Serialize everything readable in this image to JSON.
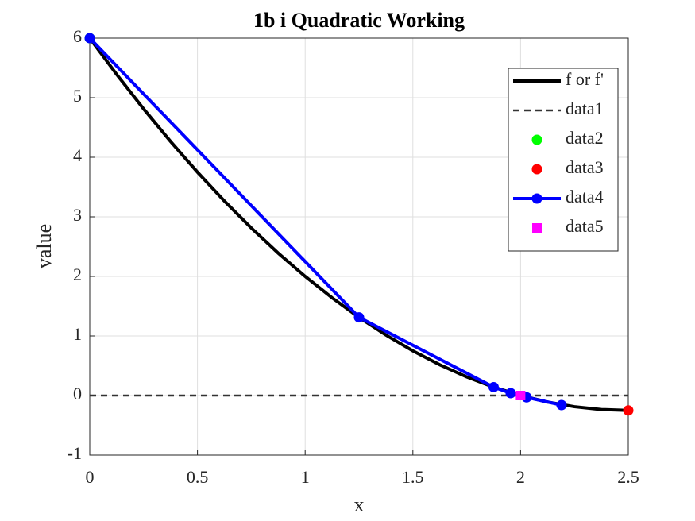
{
  "chart_data": {
    "type": "line",
    "title": "1b i Quadratic Working",
    "x_label": "x",
    "y_label": "value",
    "xlim": [
      0,
      2.5
    ],
    "xticks": [
      0,
      0.5,
      1,
      1.5,
      2,
      2.5
    ],
    "ylim": [
      -1,
      6
    ],
    "yticks": [
      -1,
      0,
      1,
      2,
      3,
      4,
      5,
      6
    ],
    "grid": true,
    "legend": "northeast",
    "series": [
      {
        "name": "f or f'",
        "color": "#000000",
        "line": "solid",
        "marker": "none",
        "x": [
          0,
          0.125,
          0.25,
          0.375,
          0.5,
          0.625,
          0.75,
          0.875,
          1,
          1.125,
          1.25,
          1.375,
          1.5,
          1.625,
          1.75,
          1.875,
          2,
          2.125,
          2.25,
          2.375,
          2.5
        ],
        "values": [
          6,
          5.390625,
          4.8125,
          4.265625,
          3.75,
          3.265625,
          2.8125,
          2.390625,
          2,
          1.640625,
          1.3125,
          1.015625,
          0.75,
          0.515625,
          0.3125,
          0.140625,
          0,
          -0.109375,
          -0.1875,
          -0.234375,
          -0.25
        ]
      },
      {
        "name": "data1",
        "color": "#333333",
        "line": "dashed",
        "marker": "none",
        "x": [
          0,
          2.5
        ],
        "values": [
          0,
          0
        ]
      },
      {
        "name": "data2",
        "color": "#00ff00",
        "line": "none",
        "marker": "circle",
        "x": [
          0
        ],
        "values": [
          6
        ]
      },
      {
        "name": "data3",
        "color": "#ff0000",
        "line": "none",
        "marker": "circle",
        "x": [
          2.5
        ],
        "values": [
          -0.25
        ]
      },
      {
        "name": "data4",
        "color": "#0000ff",
        "line": "solid",
        "marker": "circle",
        "x": [
          0,
          1.25,
          1.875,
          1.954,
          2.028,
          2.19
        ],
        "values": [
          6,
          1.3125,
          0.140625,
          0.04,
          -0.03,
          -0.16
        ]
      },
      {
        "name": "data5",
        "color": "#ff00ff",
        "line": "none",
        "marker": "square",
        "x": [
          2
        ],
        "values": [
          0
        ]
      }
    ]
  }
}
